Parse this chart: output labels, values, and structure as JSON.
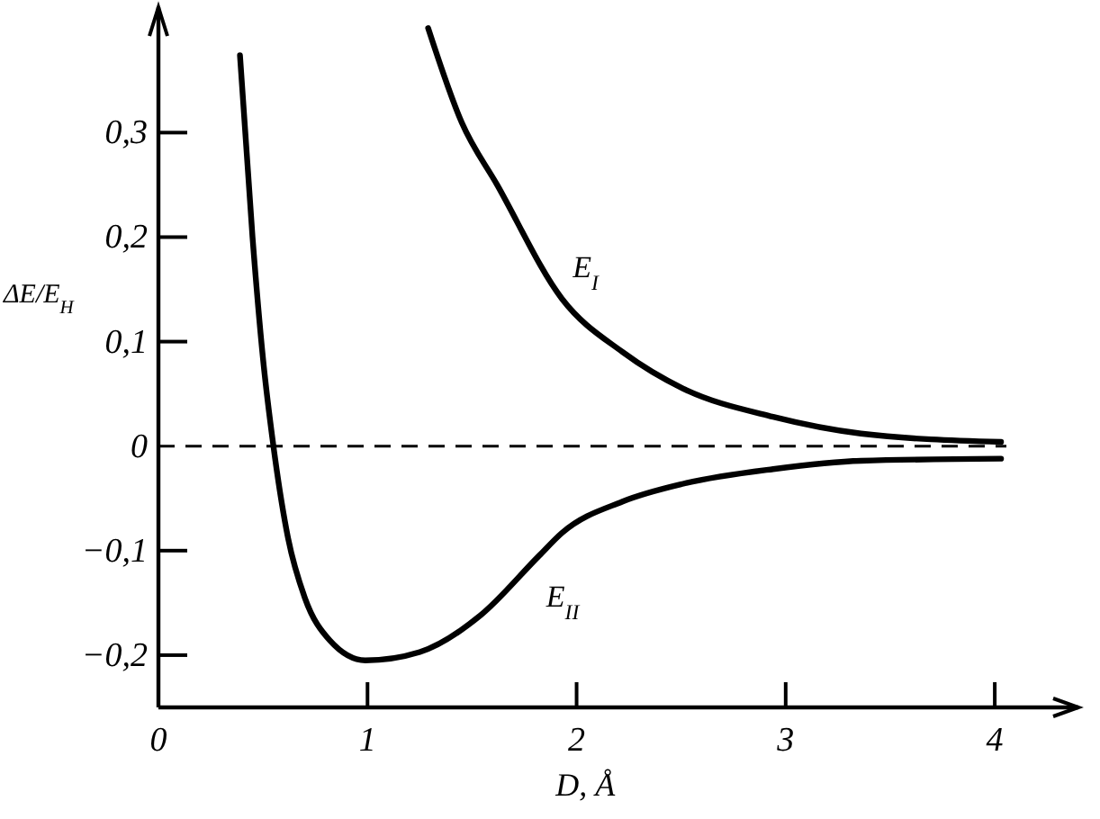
{
  "chart_data": {
    "type": "line",
    "xlabel": "D, Å",
    "ylabel": "ΔE/E$_{H}$",
    "xlim": [
      0,
      4.4
    ],
    "ylim": [
      -0.25,
      0.42
    ],
    "xticks": [
      0,
      1,
      2,
      3,
      4
    ],
    "yticks": [
      {
        "value": -0.2,
        "label": "−0,2"
      },
      {
        "value": -0.1,
        "label": "−0,1"
      },
      0,
      {
        "value": 0.1,
        "label": "0,1"
      },
      {
        "value": 0.2,
        "label": "0,2"
      },
      {
        "value": 0.3,
        "label": "0,3"
      }
    ],
    "grid": false,
    "legend": false,
    "line_style": "solid",
    "marker": "none",
    "ref_lines": [
      {
        "axis": "y",
        "value": 0,
        "line_style": "dashed",
        "color": "#000000"
      }
    ],
    "series": [
      {
        "name": "E$_{I}$",
        "color": "#000000",
        "x": [
          1.29,
          1.45,
          1.62,
          1.93,
          2.22,
          2.51,
          2.94,
          3.36,
          4.03
        ],
        "values": [
          0.4,
          0.31,
          0.25,
          0.141,
          0.09,
          0.055,
          0.028,
          0.012,
          0.004
        ]
      },
      {
        "name": "E$_{II}$",
        "color": "#000000",
        "x": [
          0.39,
          0.45,
          0.5,
          0.55,
          0.62,
          0.7,
          0.82,
          0.99,
          1.25,
          1.54,
          1.82,
          1.93,
          2.22,
          2.51,
          2.94,
          3.36,
          4.03
        ],
        "values": [
          0.374,
          0.2,
          0.084,
          0,
          -0.088,
          -0.145,
          -0.186,
          -0.205,
          -0.197,
          -0.162,
          -0.105,
          -0.083,
          -0.053,
          -0.036,
          -0.022,
          -0.014,
          -0.012
        ]
      }
    ]
  }
}
